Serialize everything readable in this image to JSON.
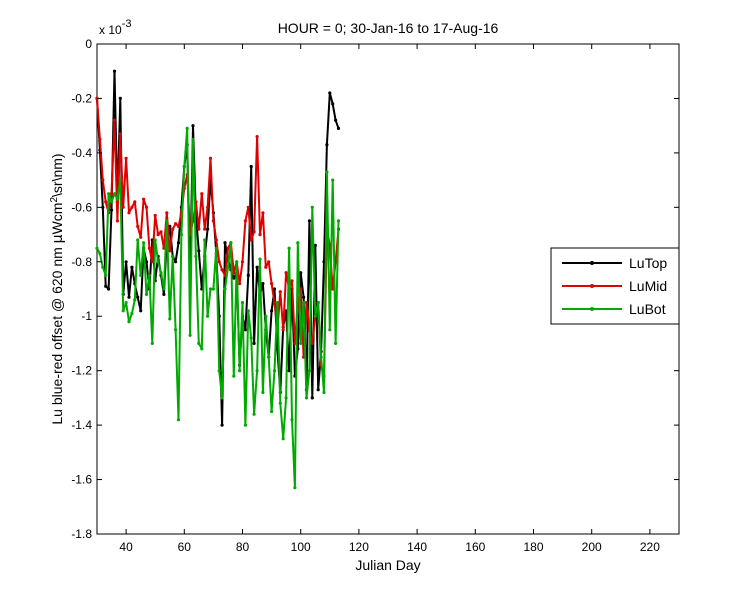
{
  "chart_data": {
    "type": "line",
    "title": "HOUR = 0; 30-Jan-16 to 17-Aug-16",
    "xlabel": "Julian Day",
    "ylabel_parts": [
      "Lu blue-red offset @ 620 nm ",
      "μ",
      "Wcm",
      "2",
      "\\sr\\nm)"
    ],
    "scale_exponent_label": "x 10",
    "scale_exponent": "-3",
    "xlim": [
      30,
      230
    ],
    "ylim": [
      -1.8,
      0
    ],
    "x_ticks": [
      40,
      60,
      80,
      100,
      120,
      140,
      160,
      180,
      200,
      220
    ],
    "y_ticks": [
      0,
      -0.2,
      -0.4,
      -0.6,
      -0.8,
      -1,
      -1.2,
      -1.4,
      -1.6,
      -1.8
    ],
    "y_tick_labels": [
      "0",
      "-0.2",
      "-0.4",
      "-0.6",
      "-0.8",
      "-1",
      "-1.2",
      "-1.4",
      "-1.6",
      "-1.8"
    ],
    "grid": false,
    "legend_position": "right",
    "series": [
      {
        "name": "LuTop",
        "color": "#000000",
        "x": [
          30,
          31,
          32,
          33,
          34,
          35,
          36,
          37,
          38,
          39,
          40,
          41,
          42,
          43,
          44,
          45,
          46,
          47,
          48,
          49,
          50,
          51,
          52,
          53,
          54,
          55,
          56,
          57,
          58,
          59,
          60,
          61,
          62,
          63,
          64,
          65,
          66,
          67,
          68,
          69,
          70,
          71,
          72,
          73,
          74,
          75,
          76,
          77,
          78,
          79,
          80,
          81,
          82,
          83,
          84,
          85,
          86,
          87,
          88,
          89,
          90,
          91,
          92,
          93,
          94,
          95,
          96,
          97,
          98,
          99,
          100,
          101,
          102,
          103,
          104,
          105,
          106,
          107,
          108,
          109,
          110,
          111,
          112,
          113
        ],
        "y": [
          -0.2,
          -0.39,
          -0.6,
          -0.89,
          -0.9,
          -0.61,
          -0.1,
          -0.58,
          -0.2,
          -0.92,
          -0.8,
          -0.93,
          -0.82,
          -0.88,
          -0.93,
          -0.98,
          -0.75,
          -0.8,
          -0.9,
          -0.72,
          -0.87,
          -0.78,
          -0.85,
          -0.92,
          -0.72,
          -0.67,
          -0.78,
          -0.8,
          -0.73,
          -0.6,
          -0.45,
          -0.37,
          -0.86,
          -0.3,
          -0.63,
          -0.76,
          -0.9,
          -0.78,
          -0.68,
          -0.5,
          -0.62,
          -0.77,
          -1.0,
          -1.4,
          -0.73,
          -0.79,
          -0.83,
          -0.86,
          -0.84,
          -1.18,
          -1.0,
          -1.05,
          -0.85,
          -0.45,
          -1.1,
          -0.82,
          -0.92,
          -0.88,
          -1.05,
          -1.15,
          -0.98,
          -0.9,
          -1.12,
          -1.28,
          -1.04,
          -0.98,
          -1.2,
          -0.9,
          -1.22,
          -1.12,
          -0.84,
          -0.93,
          -1.27,
          -0.65,
          -1.3,
          -0.74,
          -1.27,
          -1.13,
          -0.8,
          -0.37,
          -0.18,
          -0.22,
          -0.28,
          -0.31
        ]
      },
      {
        "name": "LuMid",
        "color": "#e00000",
        "x": [
          30,
          31,
          32,
          33,
          34,
          35,
          36,
          37,
          38,
          39,
          40,
          41,
          42,
          43,
          44,
          45,
          46,
          47,
          48,
          49,
          50,
          51,
          52,
          53,
          54,
          55,
          56,
          57,
          58,
          59,
          60,
          61,
          62,
          63,
          64,
          65,
          66,
          67,
          68,
          69,
          70,
          71,
          72,
          73,
          74,
          75,
          76,
          77,
          78,
          79,
          80,
          81,
          82,
          83,
          84,
          85,
          86,
          87,
          88,
          89,
          90,
          91,
          92,
          93,
          94,
          95,
          96,
          97,
          98,
          99,
          100,
          101,
          102,
          103,
          104,
          105,
          106,
          107,
          108,
          109,
          110,
          111,
          112,
          113
        ],
        "y": [
          -0.2,
          -0.35,
          -0.5,
          -0.58,
          -0.62,
          -0.55,
          -0.28,
          -0.65,
          -0.33,
          -0.6,
          -0.42,
          -0.62,
          -0.6,
          -0.58,
          -0.67,
          -0.71,
          -0.57,
          -0.6,
          -0.75,
          -0.8,
          -0.63,
          -0.7,
          -0.69,
          -0.75,
          -0.62,
          -0.76,
          -0.68,
          -0.66,
          -0.67,
          -0.62,
          -0.53,
          -0.48,
          -0.7,
          -0.65,
          -0.58,
          -0.68,
          -0.55,
          -0.68,
          -0.6,
          -0.42,
          -0.65,
          -0.72,
          -0.8,
          -0.83,
          -0.85,
          -0.75,
          -0.73,
          -0.84,
          -0.8,
          -0.88,
          -0.8,
          -0.65,
          -0.6,
          -0.72,
          -0.69,
          -0.34,
          -0.7,
          -0.62,
          -0.82,
          -0.8,
          -0.88,
          -0.95,
          -1.05,
          -0.91,
          -1.05,
          -0.84,
          -0.9,
          -0.87,
          -1.1,
          -0.95,
          -0.9,
          -1.15,
          -0.95,
          -1.05,
          -1.1,
          -1.0,
          -0.95,
          -1.18,
          -1.22,
          -0.68,
          -0.74,
          -0.9,
          -0.8,
          -0.68
        ]
      },
      {
        "name": "LuBot",
        "color": "#00aa00",
        "x": [
          30,
          31,
          32,
          33,
          34,
          35,
          36,
          37,
          38,
          39,
          40,
          41,
          42,
          43,
          44,
          45,
          46,
          47,
          48,
          49,
          50,
          51,
          52,
          53,
          54,
          55,
          56,
          57,
          58,
          59,
          60,
          61,
          62,
          63,
          64,
          65,
          66,
          67,
          68,
          69,
          70,
          71,
          72,
          73,
          74,
          75,
          76,
          77,
          78,
          79,
          80,
          81,
          82,
          83,
          84,
          85,
          86,
          87,
          88,
          89,
          90,
          91,
          92,
          93,
          94,
          95,
          96,
          97,
          98,
          99,
          100,
          101,
          102,
          103,
          104,
          105,
          106,
          107,
          108,
          109,
          110,
          111,
          112,
          113
        ],
        "y": [
          -0.75,
          -0.77,
          -0.82,
          -0.85,
          -0.55,
          -0.58,
          -0.55,
          -0.57,
          -0.5,
          -0.98,
          -0.95,
          -1.02,
          -0.99,
          -0.94,
          -0.72,
          -0.85,
          -0.73,
          -0.92,
          -0.85,
          -1.1,
          -0.72,
          -0.8,
          -0.84,
          -0.9,
          -0.65,
          -1.01,
          -0.78,
          -1.05,
          -1.38,
          -0.7,
          -0.45,
          -0.31,
          -1.07,
          -0.35,
          -0.78,
          -1.1,
          -1.12,
          -0.72,
          -1.0,
          -0.9,
          -0.9,
          -0.75,
          -1.2,
          -1.3,
          -0.9,
          -0.82,
          -0.73,
          -1.22,
          -0.8,
          -1.2,
          -0.95,
          -1.4,
          -0.98,
          -1.08,
          -1.36,
          -1.2,
          -0.79,
          -1.28,
          -1.0,
          -1.15,
          -1.35,
          -1.2,
          -0.95,
          -1.32,
          -1.45,
          -1.3,
          -0.75,
          -1.38,
          -1.63,
          -0.73,
          -1.1,
          -0.95,
          -1.3,
          -1.2,
          -0.6,
          -1.0,
          -0.95,
          -1.15,
          -1.28,
          -0.47,
          -1.05,
          -0.5,
          -1.1,
          -0.65
        ]
      }
    ]
  }
}
